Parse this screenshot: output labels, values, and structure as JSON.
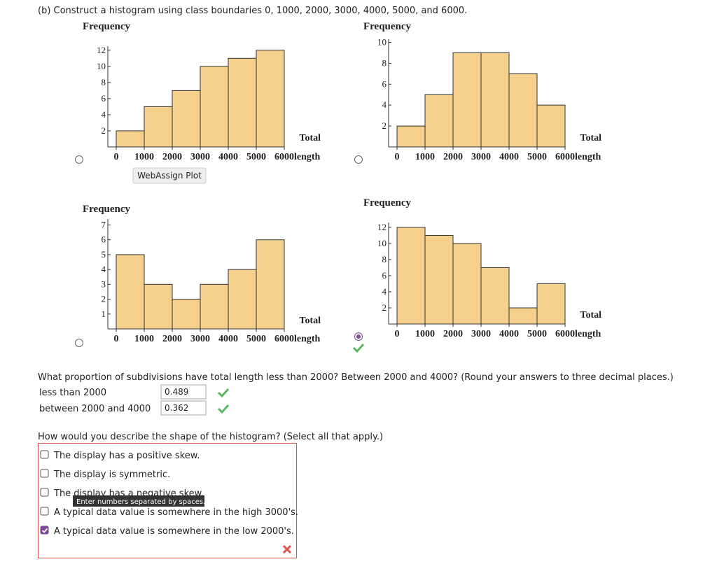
{
  "question_b": "(b) Construct a histogram using class boundaries 0, 1000, 2000, 3000, 4000, 5000, and 6000.",
  "plot_button": "WebAssign Plot",
  "chart_data": [
    {
      "type": "histogram",
      "y_label": "Frequency",
      "x_label_top": "Total",
      "x_label_end": "length",
      "color": "#f5d08c",
      "bins": [
        0,
        1000,
        2000,
        3000,
        4000,
        5000,
        6000
      ],
      "values": [
        2,
        5,
        7,
        10,
        11,
        12
      ],
      "xlim": [
        -300,
        6000
      ],
      "xticks": [
        0,
        1000,
        2000,
        3000,
        4000,
        5000,
        6000
      ],
      "ylim": [
        0,
        12.5
      ],
      "yticks": [
        2,
        4,
        6,
        8,
        10,
        12
      ],
      "selected": false
    },
    {
      "type": "histogram",
      "y_label": "Frequency",
      "x_label_top": "Total",
      "x_label_end": "length",
      "color": "#f5d08c",
      "bins": [
        0,
        1000,
        2000,
        3000,
        4000,
        5000,
        6000
      ],
      "values": [
        2,
        5,
        9,
        9,
        7,
        4
      ],
      "xlim": [
        -300,
        6000
      ],
      "xticks": [
        0,
        1000,
        2000,
        3000,
        4000,
        5000,
        6000
      ],
      "ylim": [
        0,
        10.3
      ],
      "yticks": [
        2,
        4,
        6,
        8,
        10
      ],
      "selected": false
    },
    {
      "type": "histogram",
      "y_label": "Frequency",
      "x_label_top": "Total",
      "x_label_end": "length",
      "color": "#f5d08c",
      "bins": [
        0,
        1000,
        2000,
        3000,
        4000,
        5000,
        6000
      ],
      "values": [
        5,
        3,
        2,
        3,
        4,
        6
      ],
      "xlim": [
        -300,
        6000
      ],
      "xticks": [
        0,
        1000,
        2000,
        3000,
        4000,
        5000,
        6000
      ],
      "ylim": [
        0,
        7.4
      ],
      "yticks": [
        1,
        2,
        3,
        4,
        5,
        6,
        7
      ],
      "selected": false
    },
    {
      "type": "histogram",
      "y_label": "Frequency",
      "x_label_top": "Total",
      "x_label_end": "length",
      "color": "#f5d08c",
      "bins": [
        0,
        1000,
        2000,
        3000,
        4000,
        5000,
        6000
      ],
      "values": [
        12,
        11,
        10,
        7,
        2,
        5
      ],
      "xlim": [
        -300,
        6000
      ],
      "xticks": [
        0,
        1000,
        2000,
        3000,
        4000,
        5000,
        6000
      ],
      "ylim": [
        0,
        12.6
      ],
      "yticks": [
        2,
        4,
        6,
        8,
        10,
        12
      ],
      "selected": true
    }
  ],
  "question_proportion": "What proportion of subdivisions have total length less than 2000? Between 2000 and 4000? (Round your answers to three decimal places.)",
  "answers": [
    {
      "label": "less than 2000",
      "value": "0.489"
    },
    {
      "label": "between 2000 and 4000",
      "value": "0.362"
    }
  ],
  "question_shape": "How would you describe the shape of the histogram? (Select all that apply.)",
  "options": [
    {
      "text": "The display has a positive skew.",
      "checked": false
    },
    {
      "text": "The display is symmetric.",
      "checked": false
    },
    {
      "text": "The display has a negative skew.",
      "checked": false
    },
    {
      "text": "A typical data value is somewhere in the high 3000's.",
      "checked": false
    },
    {
      "text": "A typical data value is somewhere in the low 2000's.",
      "checked": true
    }
  ],
  "tooltip": "Enter numbers separated by spaces."
}
